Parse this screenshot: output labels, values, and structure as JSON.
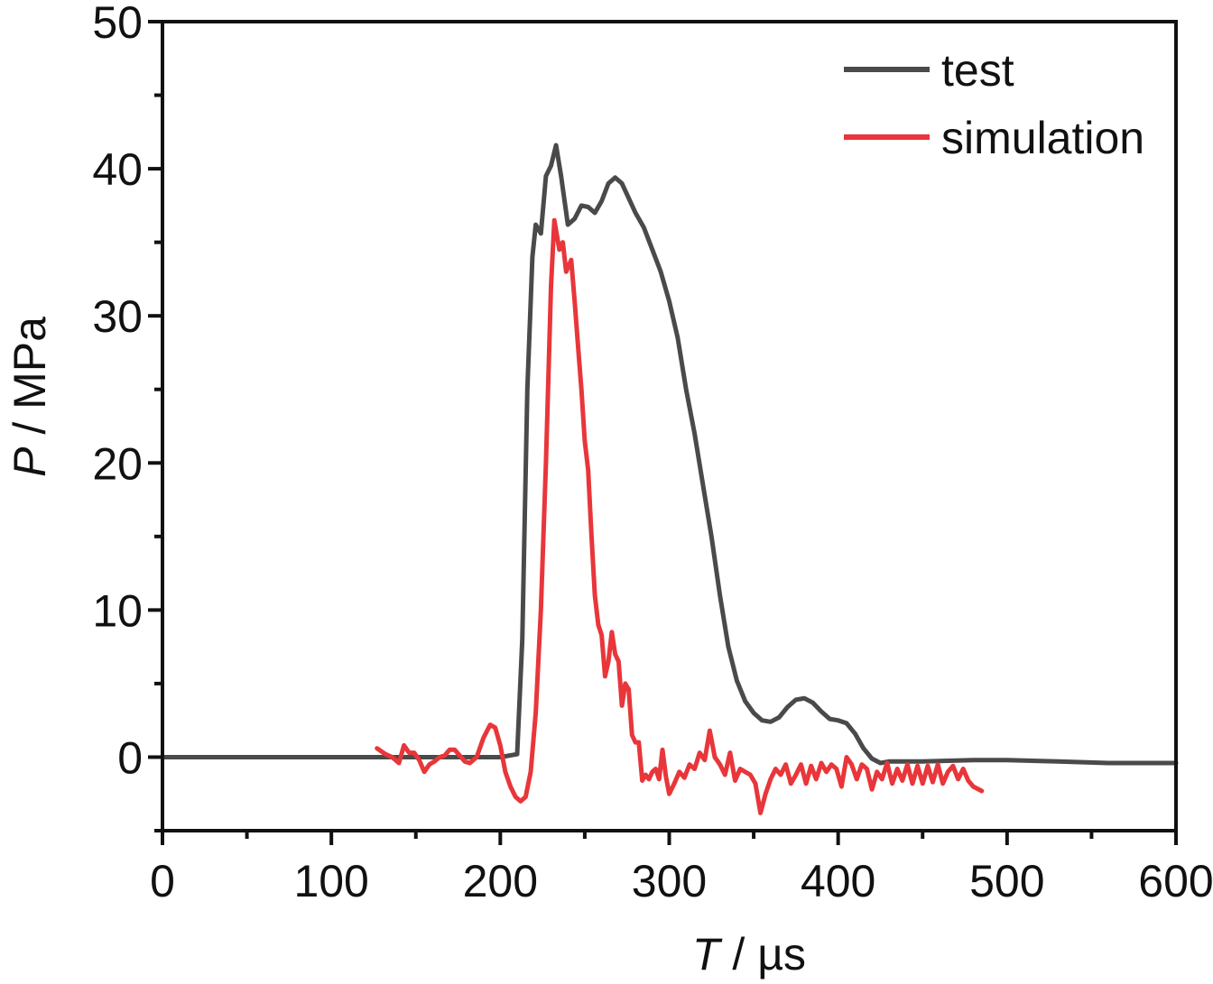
{
  "chart_data": {
    "type": "line",
    "xlabel_var": "T",
    "xlabel_unit": " / µs",
    "ylabel_var": "P",
    "ylabel_unit": " / MPa",
    "xlim": [
      0,
      600
    ],
    "ylim": [
      -5,
      50
    ],
    "xticks": [
      0,
      100,
      200,
      300,
      400,
      500,
      600
    ],
    "yticks": [
      0,
      10,
      20,
      30,
      40,
      50
    ],
    "grid": false,
    "legend_position": "top-right",
    "series": [
      {
        "name": "test",
        "color": "#4a4a4a",
        "points": [
          [
            0,
            0
          ],
          [
            100,
            0
          ],
          [
            200,
            0
          ],
          [
            210,
            0.2
          ],
          [
            213,
            8
          ],
          [
            216,
            25
          ],
          [
            219,
            34
          ],
          [
            221,
            36.2
          ],
          [
            224,
            35.6
          ],
          [
            227,
            39.5
          ],
          [
            230,
            40.2
          ],
          [
            233,
            41.6
          ],
          [
            236,
            39.5
          ],
          [
            240,
            36.2
          ],
          [
            244,
            36.6
          ],
          [
            248,
            37.5
          ],
          [
            252,
            37.4
          ],
          [
            256,
            37.0
          ],
          [
            260,
            37.8
          ],
          [
            264,
            39.0
          ],
          [
            268,
            39.4
          ],
          [
            272,
            39.0
          ],
          [
            276,
            38.0
          ],
          [
            280,
            37.0
          ],
          [
            285,
            36.0
          ],
          [
            290,
            34.5
          ],
          [
            295,
            33.0
          ],
          [
            300,
            31.0
          ],
          [
            305,
            28.5
          ],
          [
            310,
            25.0
          ],
          [
            315,
            22.0
          ],
          [
            320,
            18.5
          ],
          [
            325,
            15.0
          ],
          [
            330,
            11.0
          ],
          [
            335,
            7.5
          ],
          [
            340,
            5.2
          ],
          [
            345,
            3.8
          ],
          [
            350,
            3.0
          ],
          [
            355,
            2.5
          ],
          [
            360,
            2.4
          ],
          [
            365,
            2.7
          ],
          [
            370,
            3.4
          ],
          [
            375,
            3.9
          ],
          [
            380,
            4.0
          ],
          [
            385,
            3.7
          ],
          [
            390,
            3.1
          ],
          [
            395,
            2.6
          ],
          [
            400,
            2.5
          ],
          [
            405,
            2.3
          ],
          [
            410,
            1.6
          ],
          [
            415,
            0.6
          ],
          [
            420,
            -0.1
          ],
          [
            425,
            -0.4
          ],
          [
            430,
            -0.3
          ],
          [
            450,
            -0.3
          ],
          [
            480,
            -0.2
          ],
          [
            500,
            -0.2
          ],
          [
            530,
            -0.3
          ],
          [
            560,
            -0.4
          ],
          [
            600,
            -0.4
          ]
        ]
      },
      {
        "name": "simulation",
        "color": "#e8363a",
        "points": [
          [
            127,
            0.6
          ],
          [
            132,
            0.2
          ],
          [
            136,
            0
          ],
          [
            140,
            -0.4
          ],
          [
            143,
            0.8
          ],
          [
            146,
            0.3
          ],
          [
            149,
            0.3
          ],
          [
            152,
            -0.2
          ],
          [
            155,
            -1.0
          ],
          [
            158,
            -0.5
          ],
          [
            161,
            -0.3
          ],
          [
            164,
            0.0
          ],
          [
            167,
            0.1
          ],
          [
            170,
            0.5
          ],
          [
            173,
            0.5
          ],
          [
            176,
            0.1
          ],
          [
            179,
            -0.3
          ],
          [
            182,
            -0.4
          ],
          [
            186,
            0.0
          ],
          [
            190,
            1.3
          ],
          [
            194,
            2.2
          ],
          [
            197,
            2.0
          ],
          [
            200,
            0.8
          ],
          [
            203,
            -1.0
          ],
          [
            206,
            -2.0
          ],
          [
            209,
            -2.7
          ],
          [
            212,
            -3.0
          ],
          [
            215,
            -2.7
          ],
          [
            218,
            -1.0
          ],
          [
            221,
            3.0
          ],
          [
            224,
            10.0
          ],
          [
            227,
            20.0
          ],
          [
            230,
            32.0
          ],
          [
            232,
            36.5
          ],
          [
            235,
            34.5
          ],
          [
            237,
            35.0
          ],
          [
            239,
            33.0
          ],
          [
            242,
            33.8
          ],
          [
            244,
            31.0
          ],
          [
            246,
            28.0
          ],
          [
            248,
            25.0
          ],
          [
            250,
            21.5
          ],
          [
            252,
            19.5
          ],
          [
            254,
            15.0
          ],
          [
            256,
            11.0
          ],
          [
            258,
            9.0
          ],
          [
            260,
            8.3
          ],
          [
            262,
            5.5
          ],
          [
            264,
            6.5
          ],
          [
            266,
            8.5
          ],
          [
            268,
            7.0
          ],
          [
            270,
            6.5
          ],
          [
            272,
            3.5
          ],
          [
            274,
            5.0
          ],
          [
            276,
            4.6
          ],
          [
            278,
            1.5
          ],
          [
            280,
            1.0
          ],
          [
            282,
            1.0
          ],
          [
            284,
            -1.6
          ],
          [
            286,
            -1.2
          ],
          [
            288,
            -1.5
          ],
          [
            290,
            -1.0
          ],
          [
            292,
            -0.8
          ],
          [
            294,
            -1.5
          ],
          [
            296,
            0.5
          ],
          [
            298,
            -1.3
          ],
          [
            300,
            -2.5
          ],
          [
            303,
            -1.8
          ],
          [
            306,
            -1.0
          ],
          [
            309,
            -1.4
          ],
          [
            312,
            -0.5
          ],
          [
            315,
            -0.8
          ],
          [
            318,
            0.3
          ],
          [
            321,
            -0.2
          ],
          [
            324,
            1.8
          ],
          [
            327,
            0.0
          ],
          [
            330,
            -0.5
          ],
          [
            333,
            -1.2
          ],
          [
            336,
            0.3
          ],
          [
            339,
            -1.6
          ],
          [
            342,
            -0.8
          ],
          [
            345,
            -1.0
          ],
          [
            348,
            -1.2
          ],
          [
            351,
            -1.8
          ],
          [
            354,
            -3.8
          ],
          [
            357,
            -2.5
          ],
          [
            360,
            -1.5
          ],
          [
            363,
            -0.8
          ],
          [
            366,
            -1.2
          ],
          [
            369,
            -0.5
          ],
          [
            372,
            -1.8
          ],
          [
            375,
            -1.2
          ],
          [
            378,
            -0.5
          ],
          [
            381,
            -1.8
          ],
          [
            384,
            -0.6
          ],
          [
            387,
            -1.5
          ],
          [
            390,
            -0.4
          ],
          [
            393,
            -1.0
          ],
          [
            396,
            -0.5
          ],
          [
            399,
            -0.8
          ],
          [
            402,
            -2.0
          ],
          [
            405,
            0.0
          ],
          [
            408,
            -0.5
          ],
          [
            411,
            -1.5
          ],
          [
            414,
            -0.5
          ],
          [
            417,
            -0.8
          ],
          [
            420,
            -2.2
          ],
          [
            423,
            -1.0
          ],
          [
            426,
            -1.5
          ],
          [
            429,
            -0.4
          ],
          [
            432,
            -1.8
          ],
          [
            435,
            -0.8
          ],
          [
            438,
            -1.6
          ],
          [
            441,
            -0.5
          ],
          [
            444,
            -1.8
          ],
          [
            447,
            -0.6
          ],
          [
            450,
            -1.8
          ],
          [
            453,
            -0.6
          ],
          [
            456,
            -1.7
          ],
          [
            459,
            -0.5
          ],
          [
            462,
            -1.8
          ],
          [
            465,
            -1.0
          ],
          [
            468,
            -0.6
          ],
          [
            471,
            -1.5
          ],
          [
            474,
            -0.8
          ],
          [
            477,
            -1.6
          ],
          [
            480,
            -2.0
          ],
          [
            485,
            -2.3
          ]
        ]
      }
    ]
  }
}
